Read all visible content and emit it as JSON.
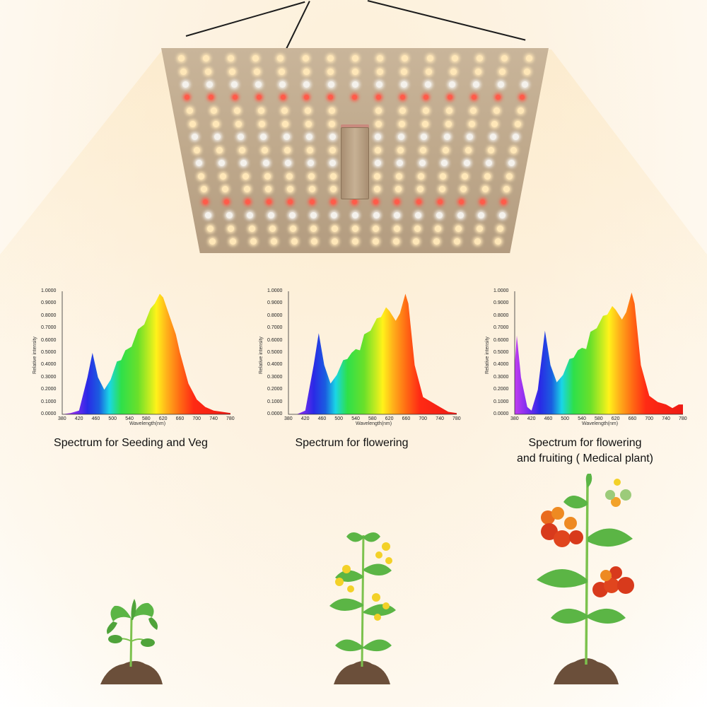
{
  "lamp": {
    "description": "Quantum board LED grow light panel",
    "led_colors": {
      "warm": "#ffe7b8",
      "white": "#f4f1ec",
      "red": "#ff5b4a",
      "uv": "#b57bff"
    }
  },
  "captions": [
    "Spectrum for Seeding and Veg",
    "Spectrum for flowering",
    "Spectrum for flowering and fruiting ( Medical plant)"
  ],
  "caption_lines": {
    "c3_line1": "Spectrum for flowering",
    "c3_line2": "and fruiting ( Medical plant)"
  },
  "plants": [
    {
      "stage": "seedling",
      "label": "seedling-plant"
    },
    {
      "stage": "flowering",
      "label": "flowering-plant"
    },
    {
      "stage": "fruiting",
      "label": "fruiting-tomato-plant"
    }
  ],
  "axis": {
    "ylabel": "Relative intensity",
    "xlabel": "Wavelength(nm)",
    "yticks": [
      "1.0000",
      "0.9000",
      "0.8000",
      "0.7000",
      "0.6000",
      "0.5000",
      "0.4000",
      "0.3000",
      "0.2000",
      "0.1000",
      "0.0000"
    ],
    "xticks": [
      "380",
      "420",
      "460",
      "500",
      "540",
      "580",
      "620",
      "660",
      "700",
      "740",
      "780"
    ]
  },
  "chart_data": [
    {
      "type": "area",
      "title": "Spectrum for Seeding and Veg",
      "xlabel": "Wavelength(nm)",
      "ylabel": "Relative intensity",
      "xlim": [
        380,
        780
      ],
      "ylim": [
        0,
        1
      ],
      "grid": false,
      "fill": "visible-spectrum gradient",
      "x": [
        380,
        400,
        420,
        440,
        452,
        465,
        480,
        495,
        510,
        520,
        530,
        545,
        560,
        575,
        590,
        600,
        612,
        620,
        635,
        650,
        660,
        680,
        700,
        720,
        740,
        760,
        780
      ],
      "y": [
        0.0,
        0.01,
        0.03,
        0.3,
        0.5,
        0.3,
        0.2,
        0.28,
        0.43,
        0.44,
        0.52,
        0.55,
        0.69,
        0.73,
        0.86,
        0.9,
        0.98,
        0.95,
        0.8,
        0.65,
        0.5,
        0.25,
        0.12,
        0.06,
        0.03,
        0.02,
        0.01
      ]
    },
    {
      "type": "area",
      "title": "Spectrum for flowering",
      "xlabel": "Wavelength(nm)",
      "ylabel": "Relative intensity",
      "xlim": [
        380,
        780
      ],
      "ylim": [
        0,
        1
      ],
      "grid": false,
      "fill": "visible-spectrum gradient",
      "x": [
        380,
        400,
        420,
        440,
        452,
        465,
        480,
        495,
        510,
        520,
        530,
        540,
        550,
        560,
        575,
        590,
        600,
        612,
        620,
        635,
        645,
        658,
        665,
        680,
        700,
        720,
        740,
        760,
        780
      ],
      "y": [
        0.0,
        0.0,
        0.03,
        0.4,
        0.66,
        0.4,
        0.25,
        0.32,
        0.44,
        0.45,
        0.5,
        0.53,
        0.52,
        0.65,
        0.68,
        0.78,
        0.79,
        0.87,
        0.84,
        0.76,
        0.82,
        0.98,
        0.9,
        0.4,
        0.14,
        0.1,
        0.06,
        0.02,
        0.01
      ]
    },
    {
      "type": "area",
      "title": "Spectrum for flowering and fruiting ( Medical plant)",
      "xlabel": "Wavelength(nm)",
      "ylabel": "Relative intensity",
      "xlim": [
        380,
        780
      ],
      "ylim": [
        0,
        1
      ],
      "grid": false,
      "fill": "visible-spectrum gradient",
      "x": [
        380,
        385,
        395,
        410,
        420,
        435,
        452,
        465,
        480,
        495,
        510,
        520,
        530,
        540,
        550,
        560,
        575,
        590,
        600,
        612,
        620,
        635,
        645,
        658,
        665,
        680,
        700,
        720,
        740,
        755,
        770,
        780
      ],
      "y": [
        0.4,
        0.64,
        0.3,
        0.06,
        0.03,
        0.2,
        0.68,
        0.4,
        0.26,
        0.32,
        0.45,
        0.46,
        0.52,
        0.54,
        0.53,
        0.67,
        0.7,
        0.8,
        0.81,
        0.88,
        0.85,
        0.77,
        0.83,
        0.99,
        0.9,
        0.4,
        0.15,
        0.1,
        0.08,
        0.05,
        0.08,
        0.08
      ]
    }
  ]
}
